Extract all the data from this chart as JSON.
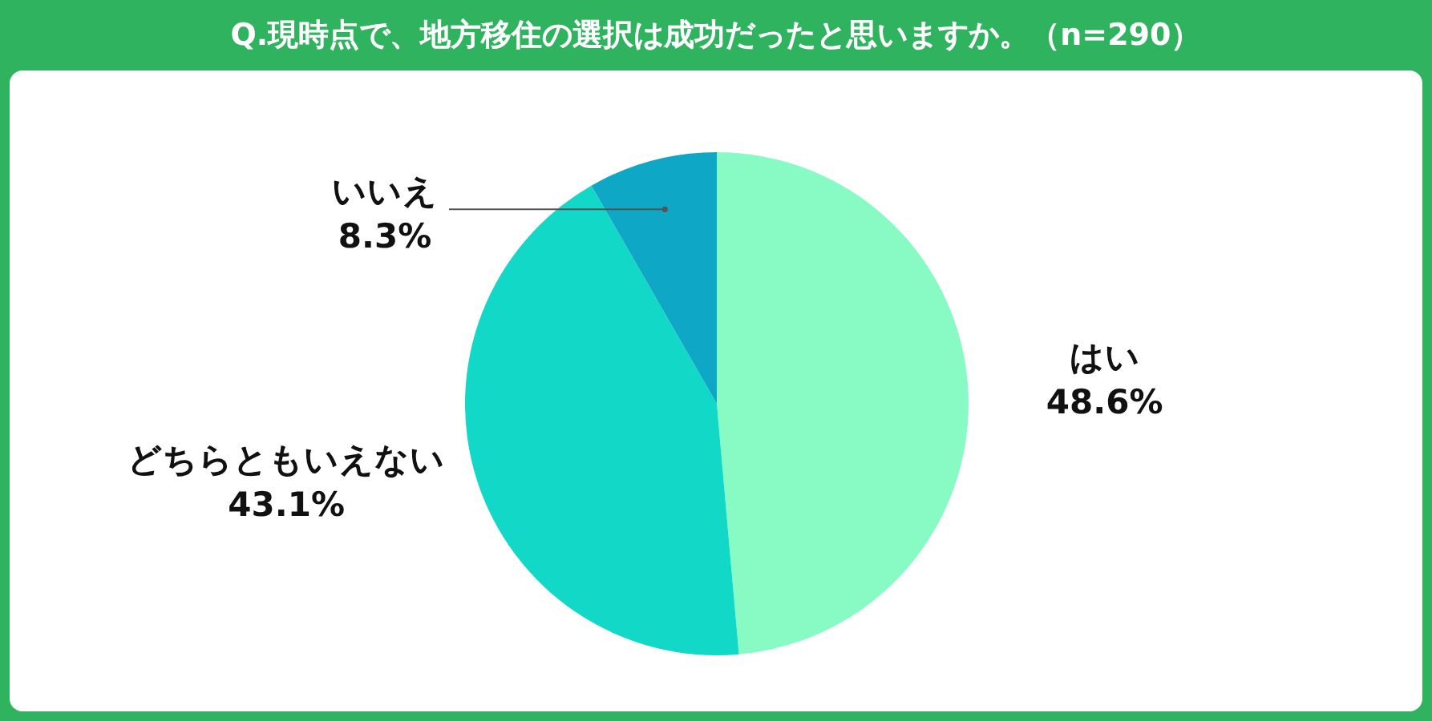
{
  "chart_data": {
    "type": "pie",
    "title": "Q.現時点で、地方移住の選択は成功だったと思いますか。（n=290）",
    "categories": [
      "はい",
      "どちらともいえない",
      "いいえ"
    ],
    "values": [
      48.6,
      43.1,
      8.3
    ],
    "colors": [
      "#88fbc4",
      "#12d8c8",
      "#0fa7c6"
    ],
    "value_labels": [
      "48.6%",
      "43.1%",
      "8.3%"
    ],
    "legend": false
  }
}
